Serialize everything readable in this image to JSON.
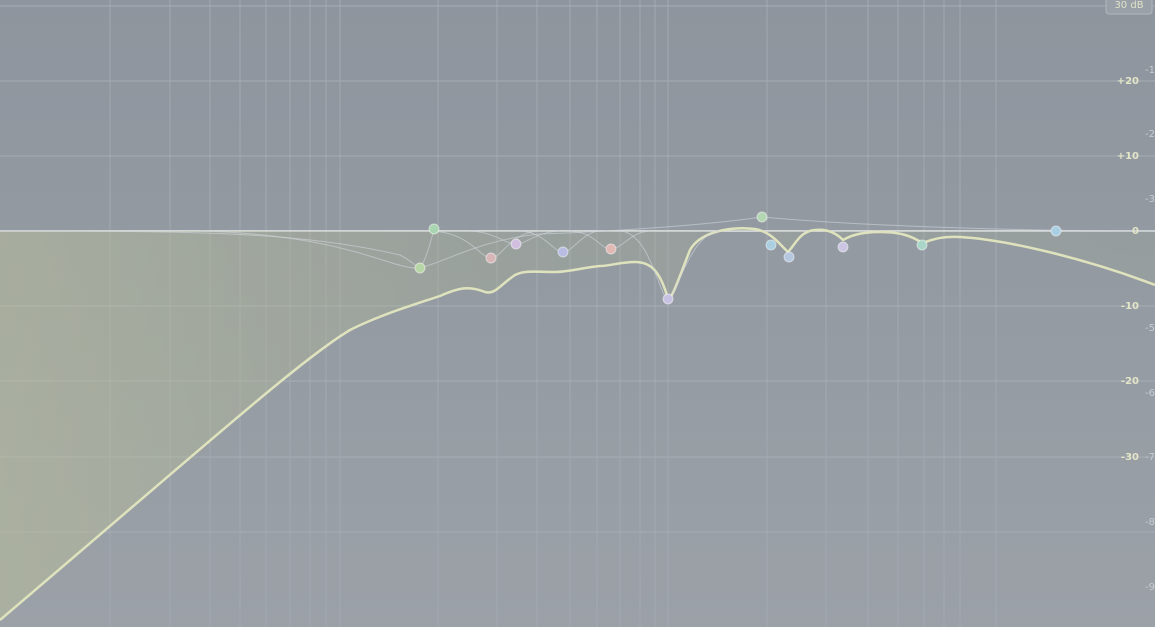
{
  "range_button": "30 dB",
  "db_scale": [
    "+20",
    "+10",
    "0",
    "-10",
    "-20",
    "-30"
  ],
  "analyzer_scale": [
    "-1",
    "-2",
    "-3",
    "-5",
    "-6",
    "-7",
    "-8",
    "-9"
  ]
}
